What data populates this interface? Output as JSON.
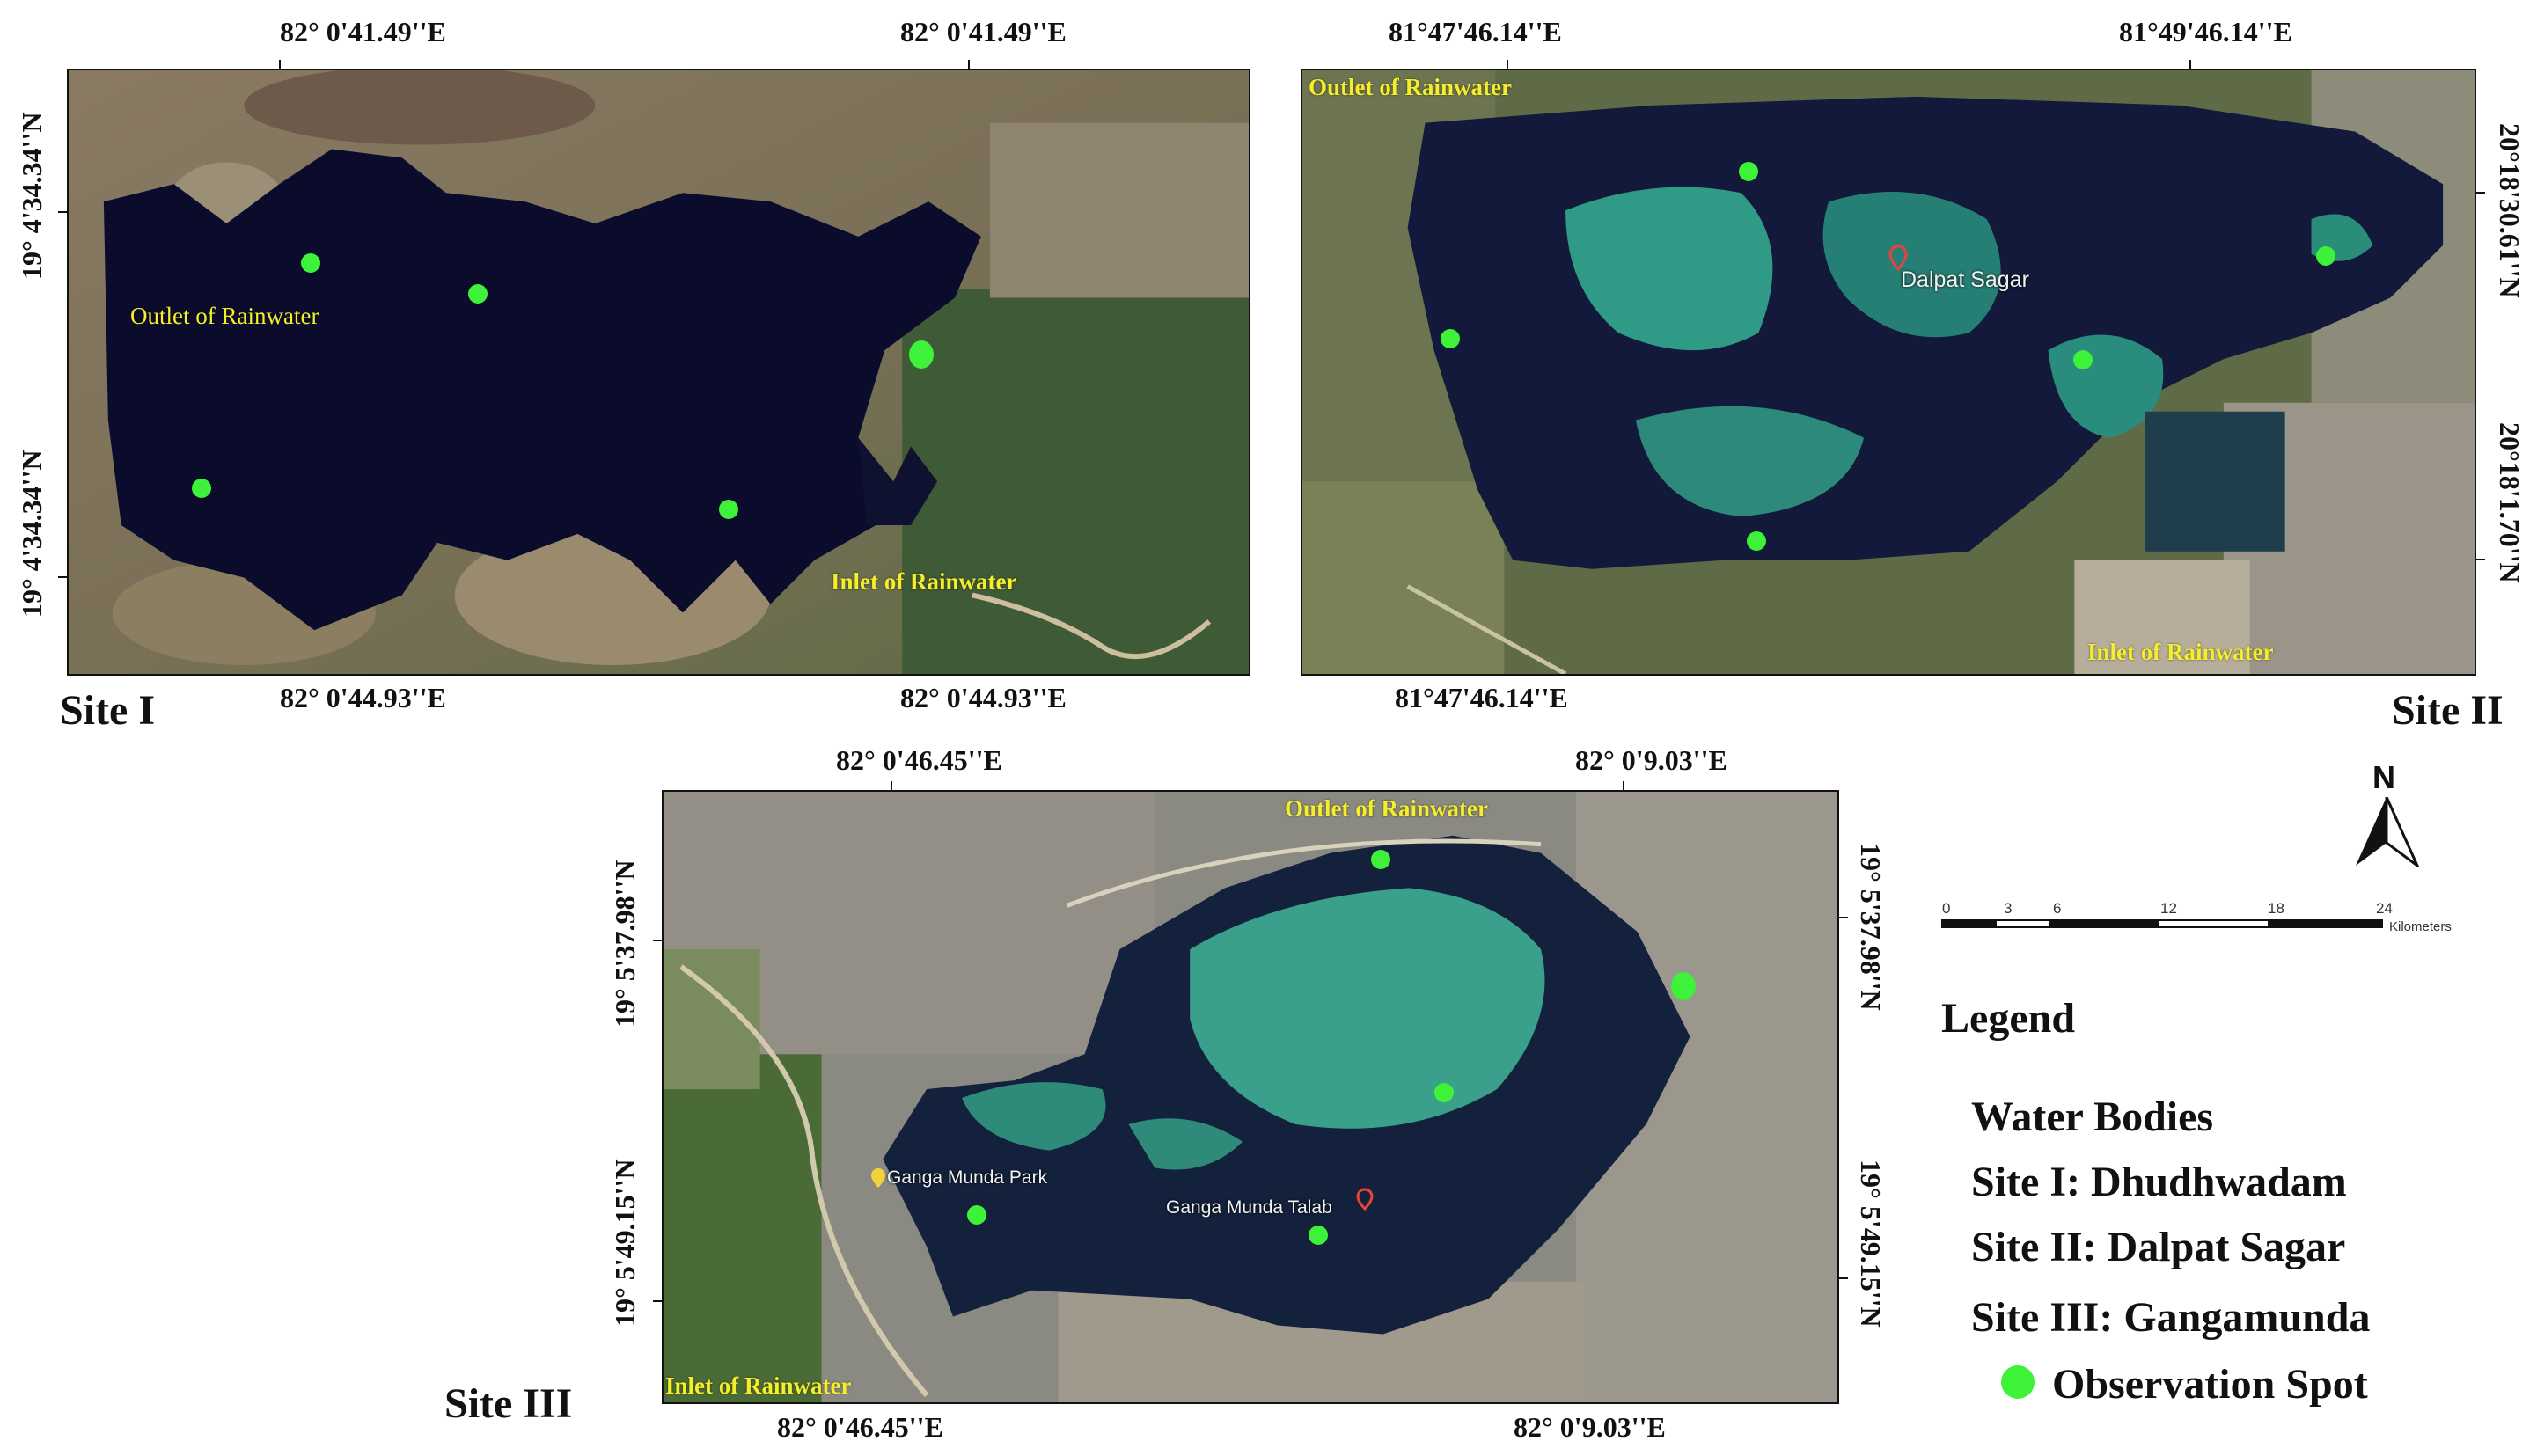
{
  "colors": {
    "observation_spot": "#3ef23a",
    "annotation_text": "#f5ee2a"
  },
  "site1": {
    "label": "Site I",
    "top_coords": [
      "82° 0'41.49''E",
      "82° 0'41.49''E"
    ],
    "bottom_coords": [
      "82° 0'44.93''E",
      "82° 0'44.93''E"
    ],
    "left_coords": [
      "19° 4'34.34''N",
      "19° 4'34.34''N"
    ],
    "outlet_label": "Outlet of Rainwater",
    "inlet_label": "Inlet  of Rainwater"
  },
  "site2": {
    "label": "Site II",
    "top_coords": [
      "81°47'46.14''E",
      "81°49'46.14''E"
    ],
    "bottom_coords": [
      "81°47'46.14''E"
    ],
    "right_coords": [
      "20°18'30.61''N",
      "20°18'1.70''N"
    ],
    "outlet_label": "Outlet of Rainwater",
    "inlet_label": "Inlet of Rainwater",
    "place_label": "Dalpat Sagar"
  },
  "site3": {
    "label": "Site III",
    "top_coords": [
      "82° 0'46.45''E",
      "82° 0'9.03''E"
    ],
    "bottom_coords": [
      "82° 0'46.45''E",
      "82° 0'9.03''E"
    ],
    "left_coords": [
      "19° 5'37.98''N",
      "19° 5'49.15''N"
    ],
    "right_coords": [
      "19° 5'37.98''N",
      "19° 5'49.15''N"
    ],
    "outlet_label": "Outlet of Rainwater",
    "inlet_label": "Inlet  of Rainwater",
    "park_label": "Ganga Munda Park",
    "place_label": "Ganga Munda Talab"
  },
  "north_arrow": {
    "label": "N"
  },
  "scale_bar": {
    "ticks": [
      "0",
      "3",
      "6",
      "12",
      "18",
      "24"
    ],
    "unit": "Kilometers"
  },
  "legend": {
    "title": "Legend",
    "items": [
      "Water Bodies",
      "Site I: Dhudhwadam",
      "Site II: Dalpat Sagar",
      "Site III: Gangamunda",
      "Observation Spot"
    ]
  }
}
